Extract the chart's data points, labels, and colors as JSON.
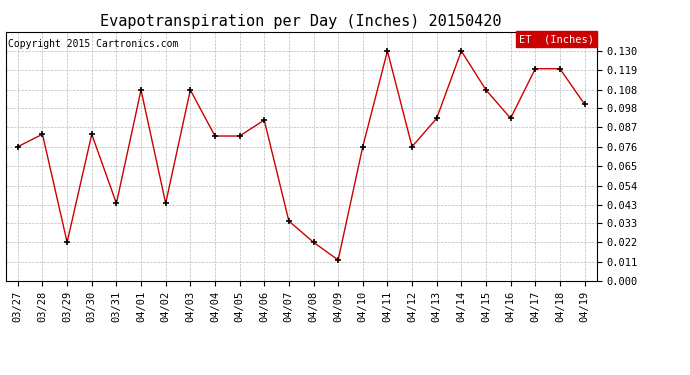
{
  "title": "Evapotranspiration per Day (Inches) 20150420",
  "copyright": "Copyright 2015 Cartronics.com",
  "legend_label": "ET  (Inches)",
  "dates": [
    "03/27",
    "03/28",
    "03/29",
    "03/30",
    "03/31",
    "04/01",
    "04/02",
    "04/03",
    "04/04",
    "04/05",
    "04/06",
    "04/07",
    "04/08",
    "04/09",
    "04/10",
    "04/11",
    "04/12",
    "04/13",
    "04/14",
    "04/15",
    "04/16",
    "04/17",
    "04/18",
    "04/19"
  ],
  "values": [
    0.076,
    0.083,
    0.022,
    0.083,
    0.044,
    0.108,
    0.044,
    0.108,
    0.082,
    0.082,
    0.091,
    0.034,
    0.022,
    0.012,
    0.076,
    0.13,
    0.076,
    0.092,
    0.13,
    0.108,
    0.092,
    0.12,
    0.12,
    0.1
  ],
  "ylim": [
    0.0,
    0.1408
  ],
  "yticks": [
    0.0,
    0.011,
    0.022,
    0.033,
    0.043,
    0.054,
    0.065,
    0.076,
    0.087,
    0.098,
    0.108,
    0.119,
    0.13
  ],
  "line_color": "#cc0000",
  "marker_color": "#000000",
  "background_color": "#ffffff",
  "grid_color": "#bbbbbb",
  "title_fontsize": 11,
  "copyright_fontsize": 7,
  "tick_fontsize": 7.5,
  "legend_bg": "#cc0000",
  "legend_fg": "#ffffff"
}
